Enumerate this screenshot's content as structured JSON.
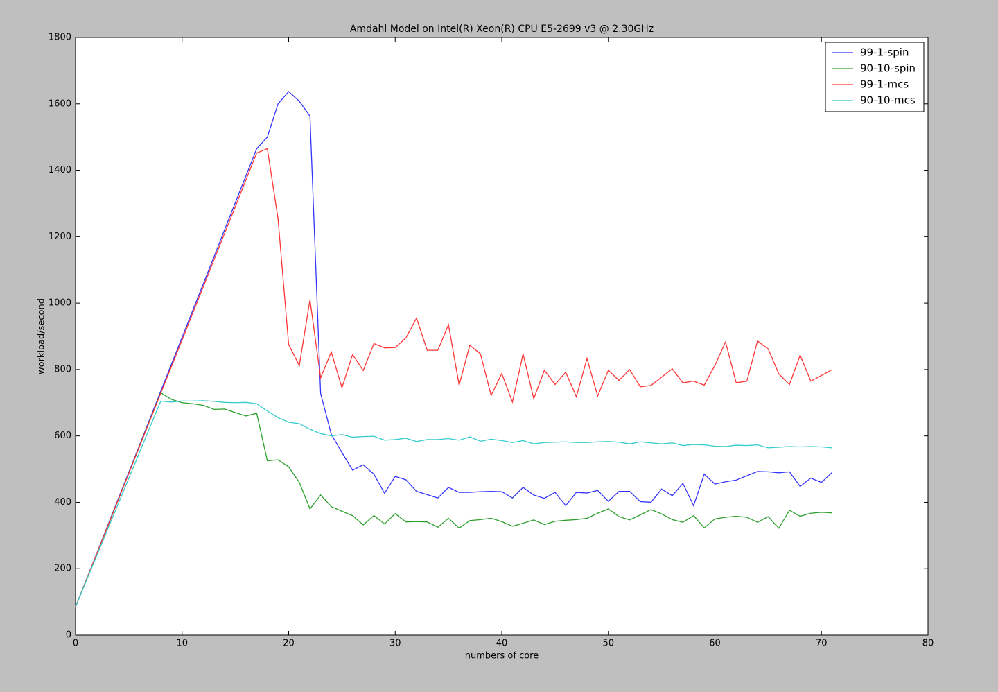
{
  "chart_data": {
    "type": "line",
    "title": "Amdahl Model on Intel(R) Xeon(R) CPU E5-2699 v3 @ 2.30GHz",
    "x_label": "numbers of core",
    "y_label": "workload/second",
    "x": [
      0,
      1,
      2,
      3,
      4,
      5,
      6,
      7,
      8,
      9,
      10,
      11,
      12,
      13,
      14,
      15,
      16,
      17,
      18,
      19,
      20,
      21,
      22,
      23,
      24,
      25,
      26,
      27,
      28,
      29,
      30,
      31,
      32,
      33,
      34,
      35,
      36,
      37,
      38,
      39,
      40,
      41,
      42,
      43,
      44,
      45,
      46,
      47,
      48,
      49,
      50,
      51,
      52,
      53,
      54,
      55,
      56,
      57,
      58,
      59,
      60,
      61,
      62,
      63,
      64,
      65,
      66,
      67,
      68,
      69,
      70,
      71
    ],
    "series": [
      {
        "name": "99-1-spin",
        "color": "#3333ff",
        "values": [
          85,
          166,
          247,
          329,
          410,
          491,
          572,
          653,
          735,
          816,
          897,
          978,
          1059,
          1140,
          1222,
          1303,
          1384,
          1465,
          1500,
          1600,
          1637,
          1608,
          1563,
          728,
          605,
          550,
          497,
          513,
          485,
          427,
          478,
          468,
          433,
          423,
          413,
          445,
          430,
          430,
          432,
          433,
          432,
          413,
          445,
          422,
          412,
          430,
          390,
          430,
          428,
          436,
          403,
          433,
          433,
          402,
          400,
          440,
          420,
          457,
          390,
          485,
          455,
          462,
          467,
          480,
          493,
          492,
          489,
          492,
          448,
          473,
          460,
          490
        ]
      },
      {
        "name": "90-10-spin",
        "color": "#2ca02c",
        "values": [
          85,
          166,
          246,
          327,
          407,
          488,
          569,
          649,
          730,
          710,
          700,
          697,
          692,
          680,
          681,
          670,
          660,
          668,
          525,
          528,
          507,
          460,
          380,
          422,
          387,
          373,
          360,
          332,
          360,
          335,
          366,
          341,
          342,
          341,
          325,
          352,
          322,
          345,
          348,
          352,
          342,
          328,
          337,
          347,
          333,
          343,
          346,
          348,
          352,
          367,
          380,
          357,
          347,
          362,
          378,
          365,
          348,
          340,
          360,
          323,
          350,
          355,
          358,
          355,
          340,
          357,
          322,
          376,
          358,
          367,
          370,
          368
        ]
      },
      {
        "name": "99-1-mcs",
        "color": "#ff3333",
        "values": [
          85,
          165,
          246,
          326,
          407,
          487,
          568,
          648,
          729,
          809,
          889,
          970,
          1050,
          1131,
          1211,
          1291,
          1372,
          1452,
          1465,
          1255,
          875,
          812,
          1010,
          775,
          853,
          745,
          845,
          797,
          878,
          865,
          866,
          895,
          955,
          858,
          858,
          935,
          753,
          873,
          847,
          722,
          788,
          702,
          847,
          712,
          798,
          755,
          792,
          718,
          833,
          720,
          798,
          767,
          800,
          748,
          752,
          777,
          802,
          760,
          765,
          753,
          812,
          883,
          760,
          765,
          886,
          862,
          787,
          755,
          843,
          765,
          782,
          800
        ]
      },
      {
        "name": "90-10-mcs",
        "color": "#33cccc",
        "values": [
          85,
          163,
          240,
          318,
          395,
          473,
          550,
          628,
          705,
          702,
          705,
          705,
          706,
          704,
          701,
          700,
          701,
          697,
          675,
          655,
          641,
          637,
          620,
          607,
          600,
          604,
          596,
          598,
          599,
          587,
          589,
          593,
          583,
          589,
          589,
          592,
          587,
          597,
          584,
          590,
          586,
          580,
          586,
          576,
          580,
          581,
          582,
          580,
          580,
          582,
          583,
          581,
          576,
          582,
          579,
          576,
          579,
          571,
          574,
          573,
          569,
          568,
          572,
          571,
          573,
          564,
          566,
          568,
          567,
          568,
          567,
          564
        ]
      }
    ],
    "xlim": [
      0,
      80
    ],
    "xticks": [
      0,
      10,
      20,
      30,
      40,
      50,
      60,
      70,
      80
    ],
    "ylim": [
      0,
      1800
    ],
    "yticks": [
      0,
      200,
      400,
      600,
      800,
      1000,
      1200,
      1400,
      1600,
      1800
    ],
    "legend": "upper right"
  }
}
